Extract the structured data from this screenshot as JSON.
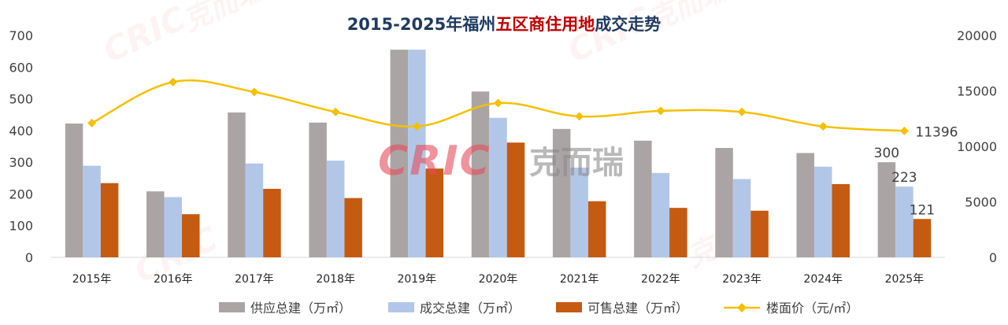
{
  "chart_data": {
    "type": "bar",
    "title": {
      "part1": "2015-2025年福州",
      "part2": "五区商住用地",
      "part3": "成交走势"
    },
    "categories": [
      "2015年",
      "2016年",
      "2017年",
      "2018年",
      "2019年",
      "2020年",
      "2021年",
      "2022年",
      "2023年",
      "2024年",
      "2025年"
    ],
    "series": [
      {
        "name": "供应总建（万㎡）",
        "type": "bar",
        "axis": "left",
        "color": "#aaa5a4",
        "values": [
          422,
          208,
          457,
          425,
          655,
          523,
          405,
          368,
          345,
          329,
          300
        ]
      },
      {
        "name": "成交总建（万㎡）",
        "type": "bar",
        "axis": "left",
        "color": "#b2c7e8",
        "values": [
          289,
          190,
          296,
          305,
          655,
          440,
          283,
          266,
          247,
          286,
          223
        ]
      },
      {
        "name": "可售总建（万㎡）",
        "type": "bar",
        "axis": "left",
        "color": "#c55a11",
        "values": [
          234,
          136,
          216,
          187,
          280,
          362,
          177,
          156,
          147,
          231,
          121
        ]
      },
      {
        "name": "楼面价（元/㎡）",
        "type": "line",
        "axis": "right",
        "color": "#f5c000",
        "values": [
          12100,
          15800,
          14900,
          13100,
          11800,
          13900,
          12700,
          13200,
          13100,
          11800,
          11396
        ]
      }
    ],
    "y_left": {
      "min": 0,
      "max": 700,
      "ticks": [
        0,
        100,
        200,
        300,
        400,
        500,
        600,
        700
      ]
    },
    "y_right": {
      "min": 0,
      "max": 20000,
      "ticks": [
        0,
        5000,
        10000,
        15000,
        20000
      ]
    },
    "data_labels": [
      {
        "series": 0,
        "index": 10,
        "text": "300"
      },
      {
        "series": 1,
        "index": 10,
        "text": "223"
      },
      {
        "series": 2,
        "index": 10,
        "text": "121"
      },
      {
        "series": 3,
        "index": 10,
        "text": "11396"
      }
    ],
    "legend_position": "bottom",
    "grid": false,
    "watermark_text": [
      "CRIC",
      "克而瑞"
    ],
    "colors": {
      "title_dark": "#1f3a5f",
      "title_accent": "#c00000",
      "axis_text": "#404040",
      "watermark": "#e74c5c"
    }
  }
}
